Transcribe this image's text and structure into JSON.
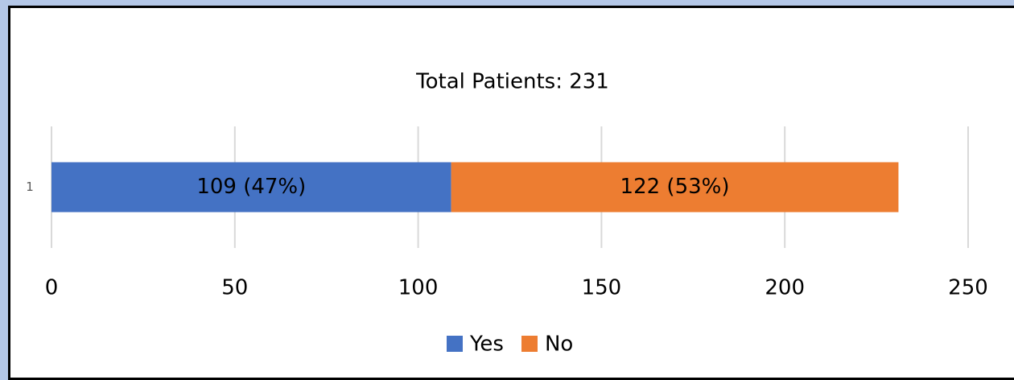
{
  "chart_data": {
    "type": "stacked-barh",
    "title": "Total Patients: 231",
    "categories": [
      "1"
    ],
    "series": [
      {
        "name": "Yes",
        "color": "#4472c4",
        "values": [
          109
        ],
        "value_labels": [
          "109 (47%)"
        ]
      },
      {
        "name": "No",
        "color": "#ed7d31",
        "values": [
          122
        ],
        "value_labels": [
          "122 (53%)"
        ]
      }
    ],
    "xlim": [
      0,
      250
    ],
    "xticks": [
      0,
      50,
      100,
      150,
      200,
      250
    ],
    "grid": true,
    "legend": "bottom"
  }
}
